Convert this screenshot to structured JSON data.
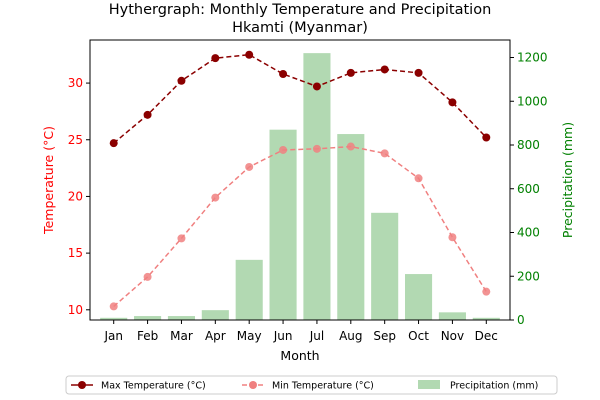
{
  "chart_data": {
    "type": "bar+line",
    "title_line1": "Hythergraph: Monthly Temperature and Precipitation",
    "title_line2": "Hkamti (Myanmar)",
    "xlabel": "Month",
    "ylabel_left": "Temperature (°C)",
    "ylabel_right": "Precipitation (mm)",
    "categories": [
      "Jan",
      "Feb",
      "Mar",
      "Apr",
      "May",
      "Jun",
      "Jul",
      "Aug",
      "Sep",
      "Oct",
      "Nov",
      "Dec"
    ],
    "ylim_left": [
      9.1,
      33.8
    ],
    "ylim_right": [
      0,
      1280
    ],
    "yticks_left": [
      10,
      15,
      20,
      25,
      30
    ],
    "yticks_right": [
      0,
      200,
      400,
      600,
      800,
      1000,
      1200
    ],
    "series": [
      {
        "name": "Max Temperature (°C)",
        "axis": "left",
        "kind": "line",
        "color": "#8b0000",
        "dashed": true,
        "values": [
          24.7,
          27.2,
          30.2,
          32.2,
          32.5,
          30.8,
          29.7,
          30.9,
          31.2,
          30.9,
          28.3,
          25.2
        ]
      },
      {
        "name": "Min Temperature (°C)",
        "axis": "left",
        "kind": "line",
        "color": "#f08080",
        "dashed": true,
        "values": [
          10.3,
          12.9,
          16.3,
          19.9,
          22.6,
          24.1,
          24.2,
          24.4,
          23.8,
          21.6,
          16.4,
          11.6
        ]
      },
      {
        "name": "Precipitation (mm)",
        "axis": "right",
        "kind": "bar",
        "color": "#b2d9b2",
        "values": [
          10,
          18,
          18,
          45,
          275,
          870,
          1220,
          850,
          490,
          210,
          35,
          10
        ]
      }
    ],
    "legend": [
      "Max Temperature (°C)",
      "Min Temperature (°C)",
      "Precipitation (mm)"
    ],
    "legend_position": "bottom-center",
    "left_axis_color": "#ff0000",
    "right_axis_color": "#008000"
  }
}
